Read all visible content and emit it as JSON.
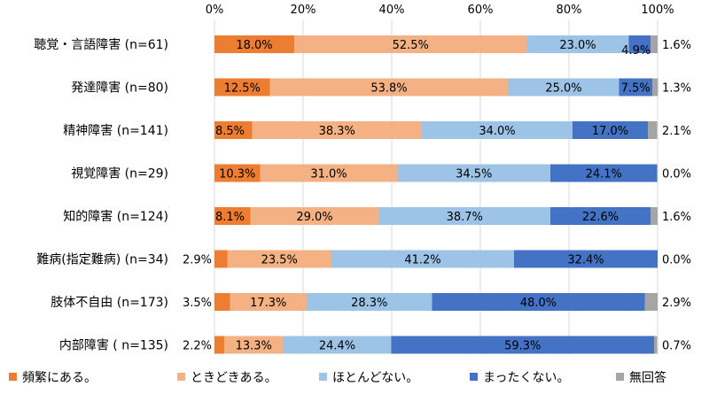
{
  "chart_data": {
    "type": "bar",
    "orientation": "horizontal",
    "stacked": true,
    "xlim": [
      0,
      100
    ],
    "x_ticks": [
      "0%",
      "20%",
      "40%",
      "60%",
      "80%",
      "100%"
    ],
    "grid": true,
    "legend_position": "bottom",
    "categories": [
      "聴覚・言語障害 (n=61)",
      "発達障害 (n=80)",
      "精神障害 (n=141)",
      "視覚障害 (n=29)",
      "知的障害 (n=124)",
      "難病(指定難病) (n=34)",
      "肢体不自由 (n=173)",
      "内部障害 ( n=135)"
    ],
    "series": [
      {
        "name": "頻繁にある。",
        "color": "#ED7D31",
        "values": [
          18.0,
          12.5,
          8.5,
          10.3,
          8.1,
          2.9,
          3.5,
          2.2
        ],
        "labels": [
          "18.0%",
          "12.5%",
          "8.5%",
          "10.3%",
          "8.1%",
          "2.9%",
          "3.5%",
          "2.2%"
        ]
      },
      {
        "name": "ときどきある。",
        "color": "#F4B183",
        "values": [
          52.5,
          53.8,
          38.3,
          31.0,
          29.0,
          23.5,
          17.3,
          13.3
        ],
        "labels": [
          "52.5%",
          "53.8%",
          "38.3%",
          "31.0%",
          "29.0%",
          "23.5%",
          "17.3%",
          "13.3%"
        ]
      },
      {
        "name": "ほとんどない。",
        "color": "#9DC3E6",
        "values": [
          23.0,
          25.0,
          34.0,
          34.5,
          38.7,
          41.2,
          28.3,
          24.4
        ],
        "labels": [
          "23.0%",
          "25.0%",
          "34.0%",
          "34.5%",
          "38.7%",
          "41.2%",
          "28.3%",
          "24.4%"
        ]
      },
      {
        "name": "まったくない。",
        "color": "#4472C4",
        "values": [
          4.9,
          7.5,
          17.0,
          24.1,
          22.6,
          32.4,
          48.0,
          59.3
        ],
        "labels": [
          "4.9%",
          "7.5%",
          "17.0%",
          "24.1%",
          "22.6%",
          "32.4%",
          "48.0%",
          "59.3%"
        ]
      },
      {
        "name": "無回答",
        "color": "#A5A5A5",
        "values": [
          1.6,
          1.3,
          2.1,
          0.0,
          1.6,
          0.0,
          2.9,
          0.7
        ],
        "labels": [
          "1.6%",
          "1.3%",
          "2.1%",
          "0.0%",
          "1.6%",
          "0.0%",
          "2.9%",
          "0.7%"
        ]
      }
    ]
  }
}
